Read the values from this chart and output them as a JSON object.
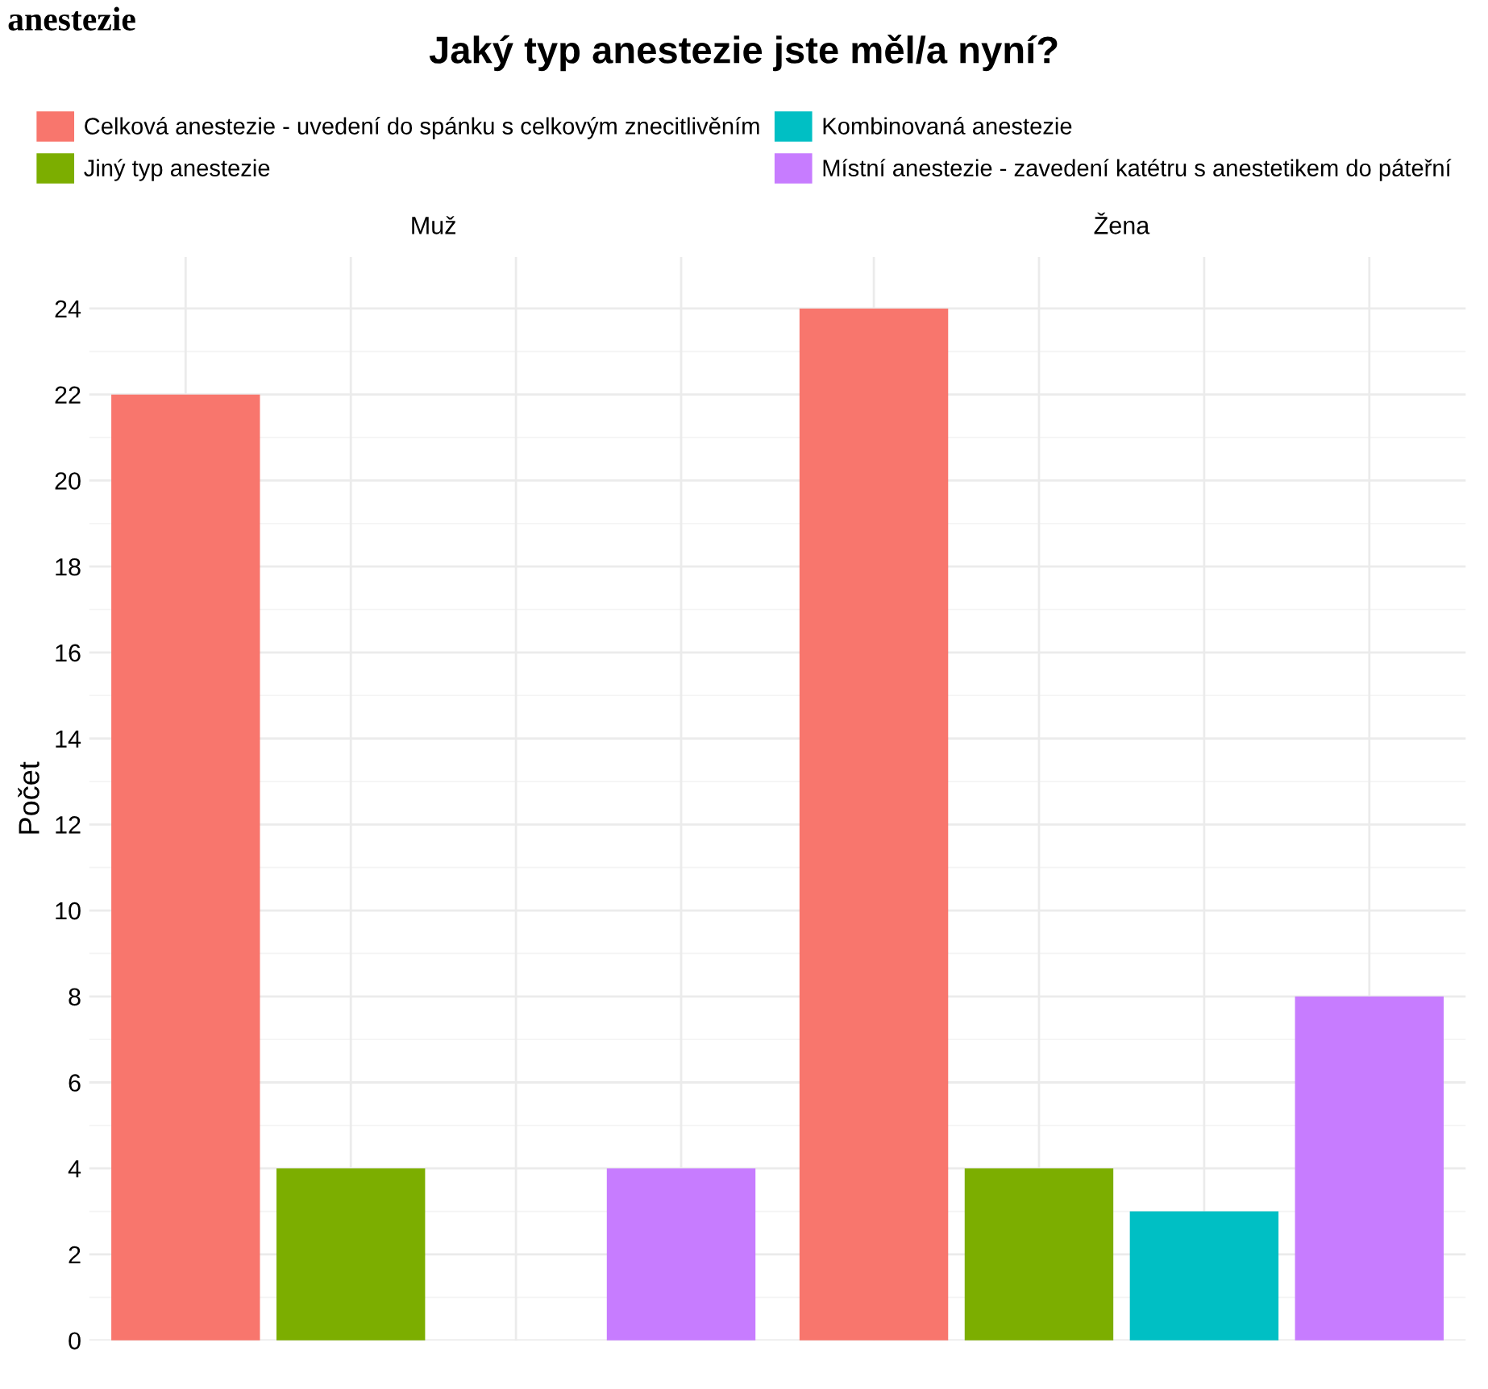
{
  "chart_data": {
    "type": "bar",
    "title": "Jaký typ anestezie jste měl/a nyní?",
    "ylabel": "Počet",
    "annotations": [
      "anestezie"
    ],
    "categories": [
      "Muž",
      "Žena"
    ],
    "series": [
      {
        "name": "Celková anestezie - uvedení do spánku s celkovým znecitlivěním",
        "color": "#f8766d",
        "values": [
          22,
          24
        ]
      },
      {
        "name": "Jiný typ anestezie",
        "color": "#7cae00",
        "values": [
          4,
          4
        ]
      },
      {
        "name": "Kombinovaná anestezie",
        "color": "#00bfc4",
        "values": [
          null,
          3
        ]
      },
      {
        "name": "Místní anestezie - zavedení katétru s anestetikem do páteřní",
        "color": "#c77cff",
        "values": [
          4,
          8
        ]
      }
    ],
    "ylim": [
      0,
      25.2
    ],
    "yticks": [
      0,
      2,
      4,
      6,
      8,
      10,
      12,
      14,
      16,
      18,
      20,
      22,
      24
    ],
    "grid": true,
    "legend": "top"
  }
}
